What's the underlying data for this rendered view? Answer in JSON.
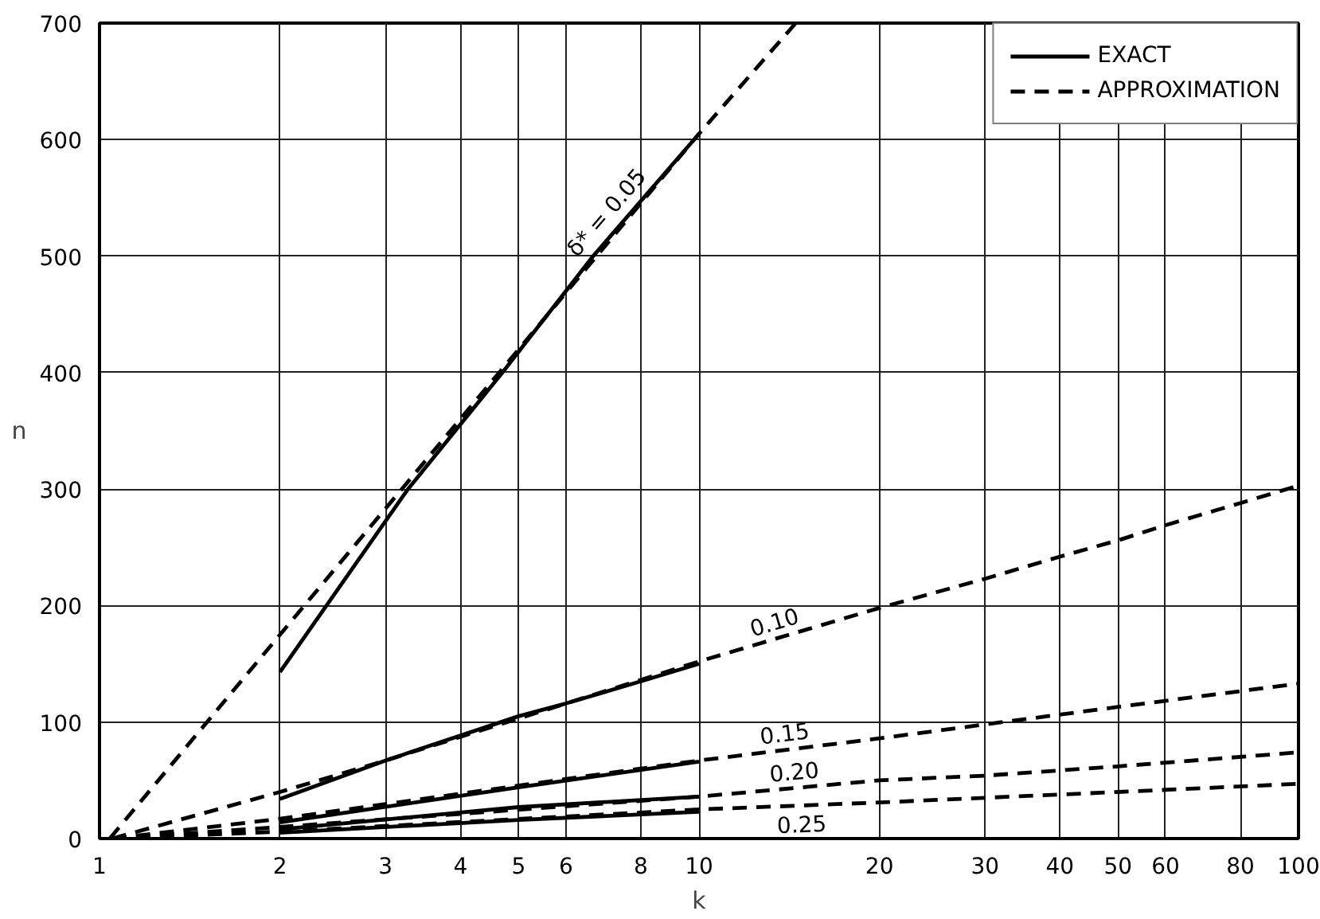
{
  "chart_data": {
    "type": "line",
    "xlabel": "k",
    "ylabel": "n",
    "xlim": [
      1,
      100
    ],
    "ylim": [
      0,
      700
    ],
    "log": "x",
    "xticks": [
      1,
      2,
      3,
      4,
      5,
      6,
      8,
      10,
      20,
      30,
      40,
      50,
      60,
      80,
      100
    ],
    "yticks": [
      0,
      100,
      200,
      300,
      400,
      500,
      600,
      700
    ],
    "grid": true,
    "legend": "top right",
    "series": [
      {
        "name": "EXACT",
        "color": "#000000",
        "line_style": "solid",
        "x": [
          2,
          3.27,
          4.7,
          6.66,
          10
        ],
        "values": [
          143,
          300,
          400,
          500,
          605
        ]
      },
      {
        "name": "APPROXIMATION",
        "color": "#000000",
        "line_style": "dashed",
        "x": [
          1.04,
          2,
          10,
          14.5
        ],
        "values": [
          0,
          175,
          605,
          700
        ]
      },
      {
        "color": "#000000",
        "line_style": "solid",
        "x": [
          2,
          3,
          5,
          6,
          8,
          10
        ],
        "values": [
          34,
          67,
          105,
          116,
          135,
          150
        ]
      },
      {
        "color": "#000000",
        "line_style": "dashed",
        "x": [
          1.05,
          2,
          3,
          10,
          20,
          30,
          40,
          50,
          60,
          80,
          100
        ],
        "values": [
          0,
          40,
          67,
          152,
          198,
          223,
          242,
          256,
          269,
          288,
          303
        ]
      },
      {
        "color": "#000000",
        "line_style": "solid",
        "x": [
          2,
          5,
          10
        ],
        "values": [
          14,
          44,
          66
        ]
      },
      {
        "color": "#000000",
        "line_style": "dashed",
        "x": [
          1.05,
          2,
          10,
          20,
          30,
          50,
          100
        ],
        "values": [
          0,
          17,
          67,
          86,
          98,
          113,
          133
        ]
      },
      {
        "color": "#000000",
        "line_style": "solid",
        "x": [
          2,
          5,
          10
        ],
        "values": [
          8,
          27,
          36
        ]
      },
      {
        "color": "#000000",
        "line_style": "dashed",
        "x": [
          1.05,
          2,
          10,
          20,
          30,
          50,
          100
        ],
        "values": [
          0,
          10,
          36,
          50,
          54,
          62,
          74
        ]
      },
      {
        "color": "#000000",
        "line_style": "solid",
        "x": [
          2,
          5,
          10
        ],
        "values": [
          5,
          16,
          23
        ]
      },
      {
        "color": "#000000",
        "line_style": "dashed",
        "x": [
          1.05,
          2,
          10,
          20,
          30,
          50,
          100
        ],
        "values": [
          0,
          6,
          25,
          31,
          35,
          40,
          47
        ]
      }
    ],
    "annotations": [
      {
        "text": "δ* = 0.05",
        "x": 7.4,
        "y": 527
      },
      {
        "text": "0.10",
        "x": 13.6,
        "y": 172
      },
      {
        "text": "0.15",
        "x": 14.0,
        "y": 76
      },
      {
        "text": "0.20",
        "x": 14.5,
        "y": 43
      },
      {
        "text": "0.25",
        "x": 14.8,
        "y": 28
      }
    ]
  }
}
